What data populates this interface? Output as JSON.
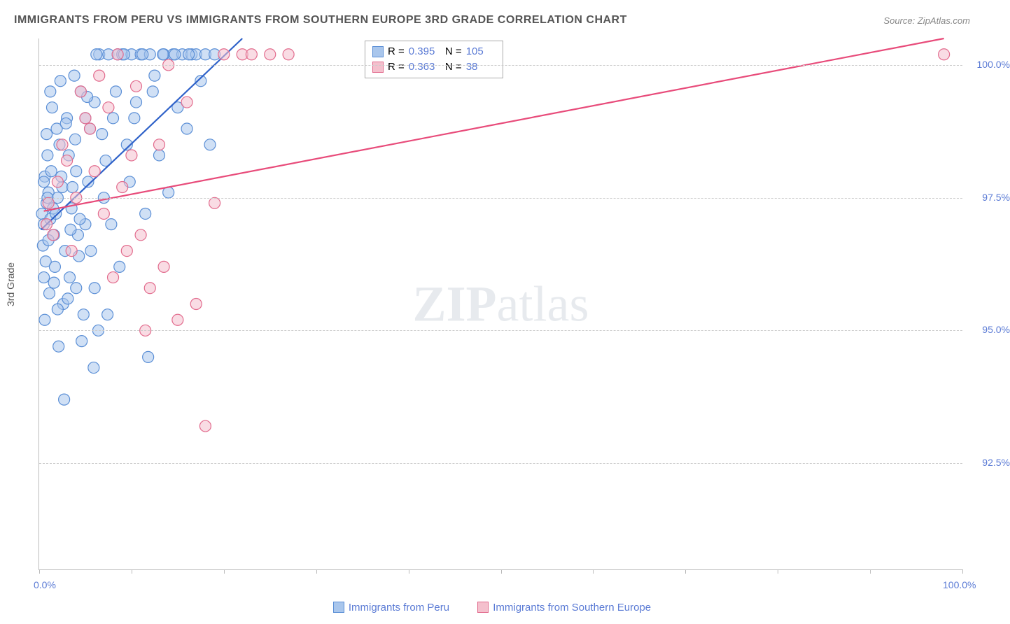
{
  "title": "IMMIGRANTS FROM PERU VS IMMIGRANTS FROM SOUTHERN EUROPE 3RD GRADE CORRELATION CHART",
  "source_label": "Source:",
  "source_value": "ZipAtlas.com",
  "ylabel": "3rd Grade",
  "watermark": {
    "bold": "ZIP",
    "light": "atlas"
  },
  "chart": {
    "type": "scatter",
    "background_color": "#ffffff",
    "grid_color": "#cccccc",
    "axis_color": "#bbbbbb",
    "x": {
      "min": 0,
      "max": 100,
      "ticks": [
        0,
        10,
        20,
        30,
        40,
        50,
        60,
        70,
        80,
        90,
        100
      ],
      "labels": {
        "0": "0.0%",
        "100": "100.0%"
      }
    },
    "y": {
      "min": 90.5,
      "max": 100.5,
      "gridlines": [
        92.5,
        95.0,
        97.5,
        100.0
      ],
      "labels": {
        "92.5": "92.5%",
        "95.0": "95.0%",
        "97.5": "97.5%",
        "100.0": "100.0%"
      }
    },
    "series": [
      {
        "name": "Immigrants from Peru",
        "color_fill": "#a9c6ec",
        "color_stroke": "#5b8fd6",
        "marker_radius": 8,
        "marker_opacity": 0.55,
        "line_color": "#2f62c9",
        "line_width": 2.2,
        "regression_line": {
          "x1": 0.2,
          "y1": 96.9,
          "x2": 22,
          "y2": 100.5
        },
        "stats": {
          "R": "0.395",
          "N": "105"
        },
        "points": [
          [
            0.3,
            97.2
          ],
          [
            0.5,
            97.0
          ],
          [
            0.8,
            97.4
          ],
          [
            1.0,
            97.6
          ],
          [
            1.2,
            97.1
          ],
          [
            0.6,
            97.9
          ],
          [
            0.4,
            96.6
          ],
          [
            1.5,
            97.3
          ],
          [
            0.9,
            98.3
          ],
          [
            1.8,
            97.2
          ],
          [
            2.0,
            97.5
          ],
          [
            0.7,
            96.3
          ],
          [
            1.3,
            98.0
          ],
          [
            2.2,
            98.5
          ],
          [
            1.6,
            96.8
          ],
          [
            0.5,
            96.0
          ],
          [
            2.5,
            97.7
          ],
          [
            1.1,
            95.7
          ],
          [
            3.0,
            99.0
          ],
          [
            0.8,
            98.7
          ],
          [
            3.5,
            97.3
          ],
          [
            1.4,
            99.2
          ],
          [
            4.0,
            98.0
          ],
          [
            2.8,
            96.5
          ],
          [
            0.6,
            95.2
          ],
          [
            4.5,
            99.5
          ],
          [
            1.9,
            98.8
          ],
          [
            5.0,
            97.0
          ],
          [
            2.3,
            99.7
          ],
          [
            3.2,
            98.3
          ],
          [
            5.5,
            98.8
          ],
          [
            1.7,
            96.2
          ],
          [
            6.0,
            99.3
          ],
          [
            2.6,
            95.5
          ],
          [
            4.2,
            96.8
          ],
          [
            6.5,
            100.2
          ],
          [
            3.8,
            99.8
          ],
          [
            7.0,
            97.5
          ],
          [
            1.2,
            99.5
          ],
          [
            7.5,
            100.2
          ],
          [
            4.8,
            95.3
          ],
          [
            8.0,
            99.0
          ],
          [
            2.1,
            94.7
          ],
          [
            8.5,
            100.2
          ],
          [
            5.3,
            97.8
          ],
          [
            9.0,
            100.2
          ],
          [
            3.3,
            96.0
          ],
          [
            9.5,
            98.5
          ],
          [
            6.2,
            100.2
          ],
          [
            10.0,
            100.2
          ],
          [
            4.0,
            95.8
          ],
          [
            10.5,
            99.3
          ],
          [
            7.2,
            98.2
          ],
          [
            11.0,
            100.2
          ],
          [
            2.9,
            98.9
          ],
          [
            11.5,
            97.2
          ],
          [
            8.3,
            99.5
          ],
          [
            12.0,
            100.2
          ],
          [
            5.6,
            96.5
          ],
          [
            12.5,
            99.8
          ],
          [
            9.2,
            100.2
          ],
          [
            13.0,
            98.3
          ],
          [
            3.6,
            97.7
          ],
          [
            13.5,
            100.2
          ],
          [
            10.3,
            99.0
          ],
          [
            14.0,
            97.6
          ],
          [
            6.8,
            98.7
          ],
          [
            14.5,
            100.2
          ],
          [
            4.3,
            96.4
          ],
          [
            15.0,
            99.2
          ],
          [
            11.2,
            100.2
          ],
          [
            15.5,
            100.2
          ],
          [
            7.8,
            97.0
          ],
          [
            16.0,
            98.8
          ],
          [
            5.0,
            99.0
          ],
          [
            16.5,
            100.2
          ],
          [
            12.3,
            99.5
          ],
          [
            17.0,
            100.2
          ],
          [
            8.7,
            96.2
          ],
          [
            17.5,
            99.7
          ],
          [
            13.4,
            100.2
          ],
          [
            18.0,
            100.2
          ],
          [
            6.4,
            95.0
          ],
          [
            18.5,
            98.5
          ],
          [
            14.7,
            100.2
          ],
          [
            19.0,
            100.2
          ],
          [
            9.8,
            97.8
          ],
          [
            16.2,
            100.2
          ],
          [
            2.0,
            95.4
          ],
          [
            5.9,
            94.3
          ],
          [
            3.1,
            95.6
          ],
          [
            4.6,
            94.8
          ],
          [
            6.0,
            95.8
          ],
          [
            7.4,
            95.3
          ],
          [
            1.0,
            96.7
          ],
          [
            0.5,
            97.8
          ],
          [
            2.4,
            97.9
          ],
          [
            3.9,
            98.6
          ],
          [
            5.2,
            99.4
          ],
          [
            4.4,
            97.1
          ],
          [
            2.7,
            93.7
          ],
          [
            11.8,
            94.5
          ],
          [
            1.6,
            95.9
          ],
          [
            0.9,
            97.5
          ],
          [
            3.4,
            96.9
          ]
        ]
      },
      {
        "name": "Immigrants from Southern Europe",
        "color_fill": "#f4c0cd",
        "color_stroke": "#e26b8d",
        "marker_radius": 8,
        "marker_opacity": 0.55,
        "line_color": "#e84b7a",
        "line_width": 2.2,
        "regression_line": {
          "x1": 0.5,
          "y1": 97.25,
          "x2": 98,
          "y2": 100.5
        },
        "stats": {
          "R": "0.363",
          "N": "38"
        },
        "points": [
          [
            1.0,
            97.4
          ],
          [
            2.0,
            97.8
          ],
          [
            0.8,
            97.0
          ],
          [
            3.0,
            98.2
          ],
          [
            1.5,
            96.8
          ],
          [
            4.0,
            97.5
          ],
          [
            2.5,
            98.5
          ],
          [
            5.0,
            99.0
          ],
          [
            3.5,
            96.5
          ],
          [
            6.0,
            98.0
          ],
          [
            4.5,
            99.5
          ],
          [
            7.0,
            97.2
          ],
          [
            5.5,
            98.8
          ],
          [
            8.0,
            96.0
          ],
          [
            6.5,
            99.8
          ],
          [
            9.0,
            97.7
          ],
          [
            7.5,
            99.2
          ],
          [
            10.0,
            98.3
          ],
          [
            8.5,
            100.2
          ],
          [
            11.0,
            96.8
          ],
          [
            10.5,
            99.6
          ],
          [
            12.0,
            95.8
          ],
          [
            13.0,
            98.5
          ],
          [
            15.0,
            95.2
          ],
          [
            14.0,
            100.0
          ],
          [
            17.0,
            95.5
          ],
          [
            16.0,
            99.3
          ],
          [
            19.0,
            97.4
          ],
          [
            20.0,
            100.2
          ],
          [
            22.0,
            100.2
          ],
          [
            23.0,
            100.2
          ],
          [
            25.0,
            100.2
          ],
          [
            27.0,
            100.2
          ],
          [
            18.0,
            93.2
          ],
          [
            13.5,
            96.2
          ],
          [
            11.5,
            95.0
          ],
          [
            9.5,
            96.5
          ],
          [
            98.0,
            100.2
          ]
        ]
      }
    ]
  },
  "bottom_legend": [
    "Immigrants from Peru",
    "Immigrants from Southern Europe"
  ],
  "colors": {
    "text_blue": "#5b7bd5"
  }
}
